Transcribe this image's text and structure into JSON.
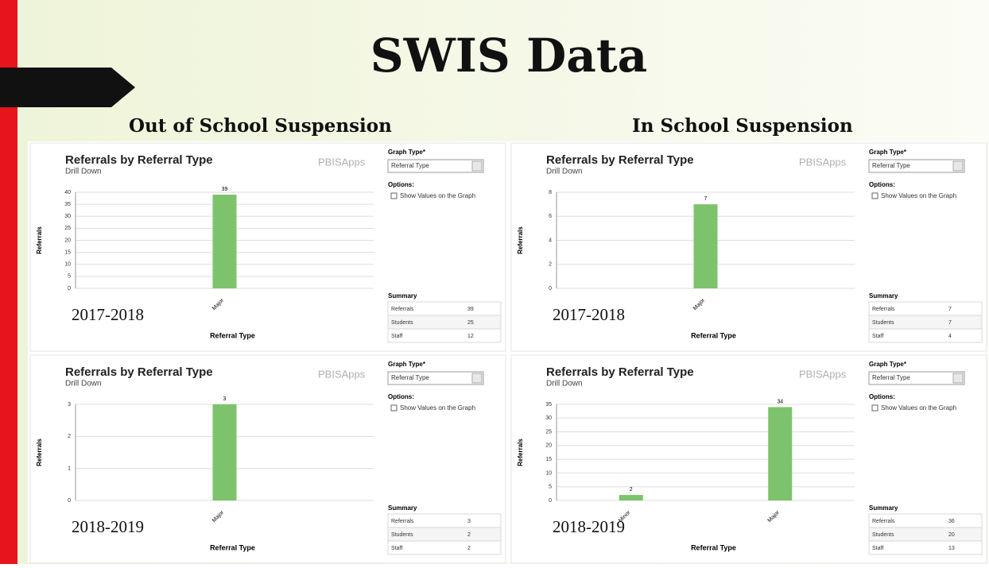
{
  "title": "SWIS Data",
  "sections": [
    "Out of School Suspension",
    "In School Suspension"
  ],
  "panels": [
    {
      "year": "2017-2018",
      "logo": "PBISApps",
      "graph_type_label": "Graph Type*",
      "graph_type": "Referral Type",
      "options_label": "Options:",
      "option": "Show Values on the Graph",
      "summary_title": "Summary",
      "summary": [
        [
          "Referrals",
          39
        ],
        [
          "Students",
          25
        ],
        [
          "Staff",
          12
        ]
      ]
    },
    {
      "year": "2017-2018",
      "logo": "PBISApps",
      "graph_type_label": "Graph Type*",
      "graph_type": "Referral Type",
      "options_label": "Options:",
      "option": "Show Values on the Graph",
      "summary_title": "Summary",
      "summary": [
        [
          "Referrals",
          7
        ],
        [
          "Students",
          7
        ],
        [
          "Staff",
          4
        ]
      ]
    },
    {
      "year": "2018-2019",
      "logo": "PBISApps",
      "graph_type_label": "Graph Type*",
      "graph_type": "Referral Type",
      "options_label": "Options:",
      "option": "Show Values on the Graph",
      "summary_title": "Summary",
      "summary": [
        [
          "Referrals",
          3
        ],
        [
          "Students",
          2
        ],
        [
          "Staff",
          2
        ]
      ]
    },
    {
      "year": "2018-2019",
      "logo": "PBISApps",
      "graph_type_label": "Graph Type*",
      "graph_type": "Referral Type",
      "options_label": "Options:",
      "option": "Show Values on the Graph",
      "summary_title": "Summary",
      "summary": [
        [
          "Referrals",
          36
        ],
        [
          "Students",
          20
        ],
        [
          "Staff",
          13
        ]
      ]
    }
  ],
  "chart_data": [
    {
      "type": "bar",
      "title": "Referrals by Referral Type",
      "subtitle": "Drill Down",
      "xlabel": "Referral Type",
      "ylabel": "Referrals",
      "categories": [
        "Major"
      ],
      "values": [
        39
      ],
      "color": "#7dc36b",
      "ylim": [
        0,
        40
      ],
      "yticks": [
        0,
        5,
        10,
        15,
        20,
        25,
        30,
        35,
        40
      ],
      "grid": true,
      "show_values": true
    },
    {
      "type": "bar",
      "title": "Referrals by Referral Type",
      "subtitle": "Drill Down",
      "xlabel": "Referral Type",
      "ylabel": "Referrals",
      "categories": [
        "Major"
      ],
      "values": [
        7
      ],
      "color": "#7dc36b",
      "ylim": [
        0,
        8
      ],
      "yticks": [
        0,
        2,
        4,
        6,
        8
      ],
      "grid": true,
      "show_values": true
    },
    {
      "type": "bar",
      "title": "Referrals by Referral Type",
      "subtitle": "Drill Down",
      "xlabel": "Referral Type",
      "ylabel": "Referrals",
      "categories": [
        "Major"
      ],
      "values": [
        3
      ],
      "color": "#7dc36b",
      "ylim": [
        0,
        3
      ],
      "yticks": [
        0,
        1,
        2,
        3
      ],
      "grid": true,
      "show_values": true
    },
    {
      "type": "bar",
      "title": "Referrals by Referral Type",
      "subtitle": "Drill Down",
      "xlabel": "Referral Type",
      "ylabel": "Referrals",
      "categories": [
        "Minor",
        "Major"
      ],
      "values": [
        2,
        34
      ],
      "color": "#7dc36b",
      "ylim": [
        0,
        35
      ],
      "yticks": [
        0,
        5,
        10,
        15,
        20,
        25,
        30,
        35
      ],
      "grid": true,
      "show_values": true
    }
  ]
}
